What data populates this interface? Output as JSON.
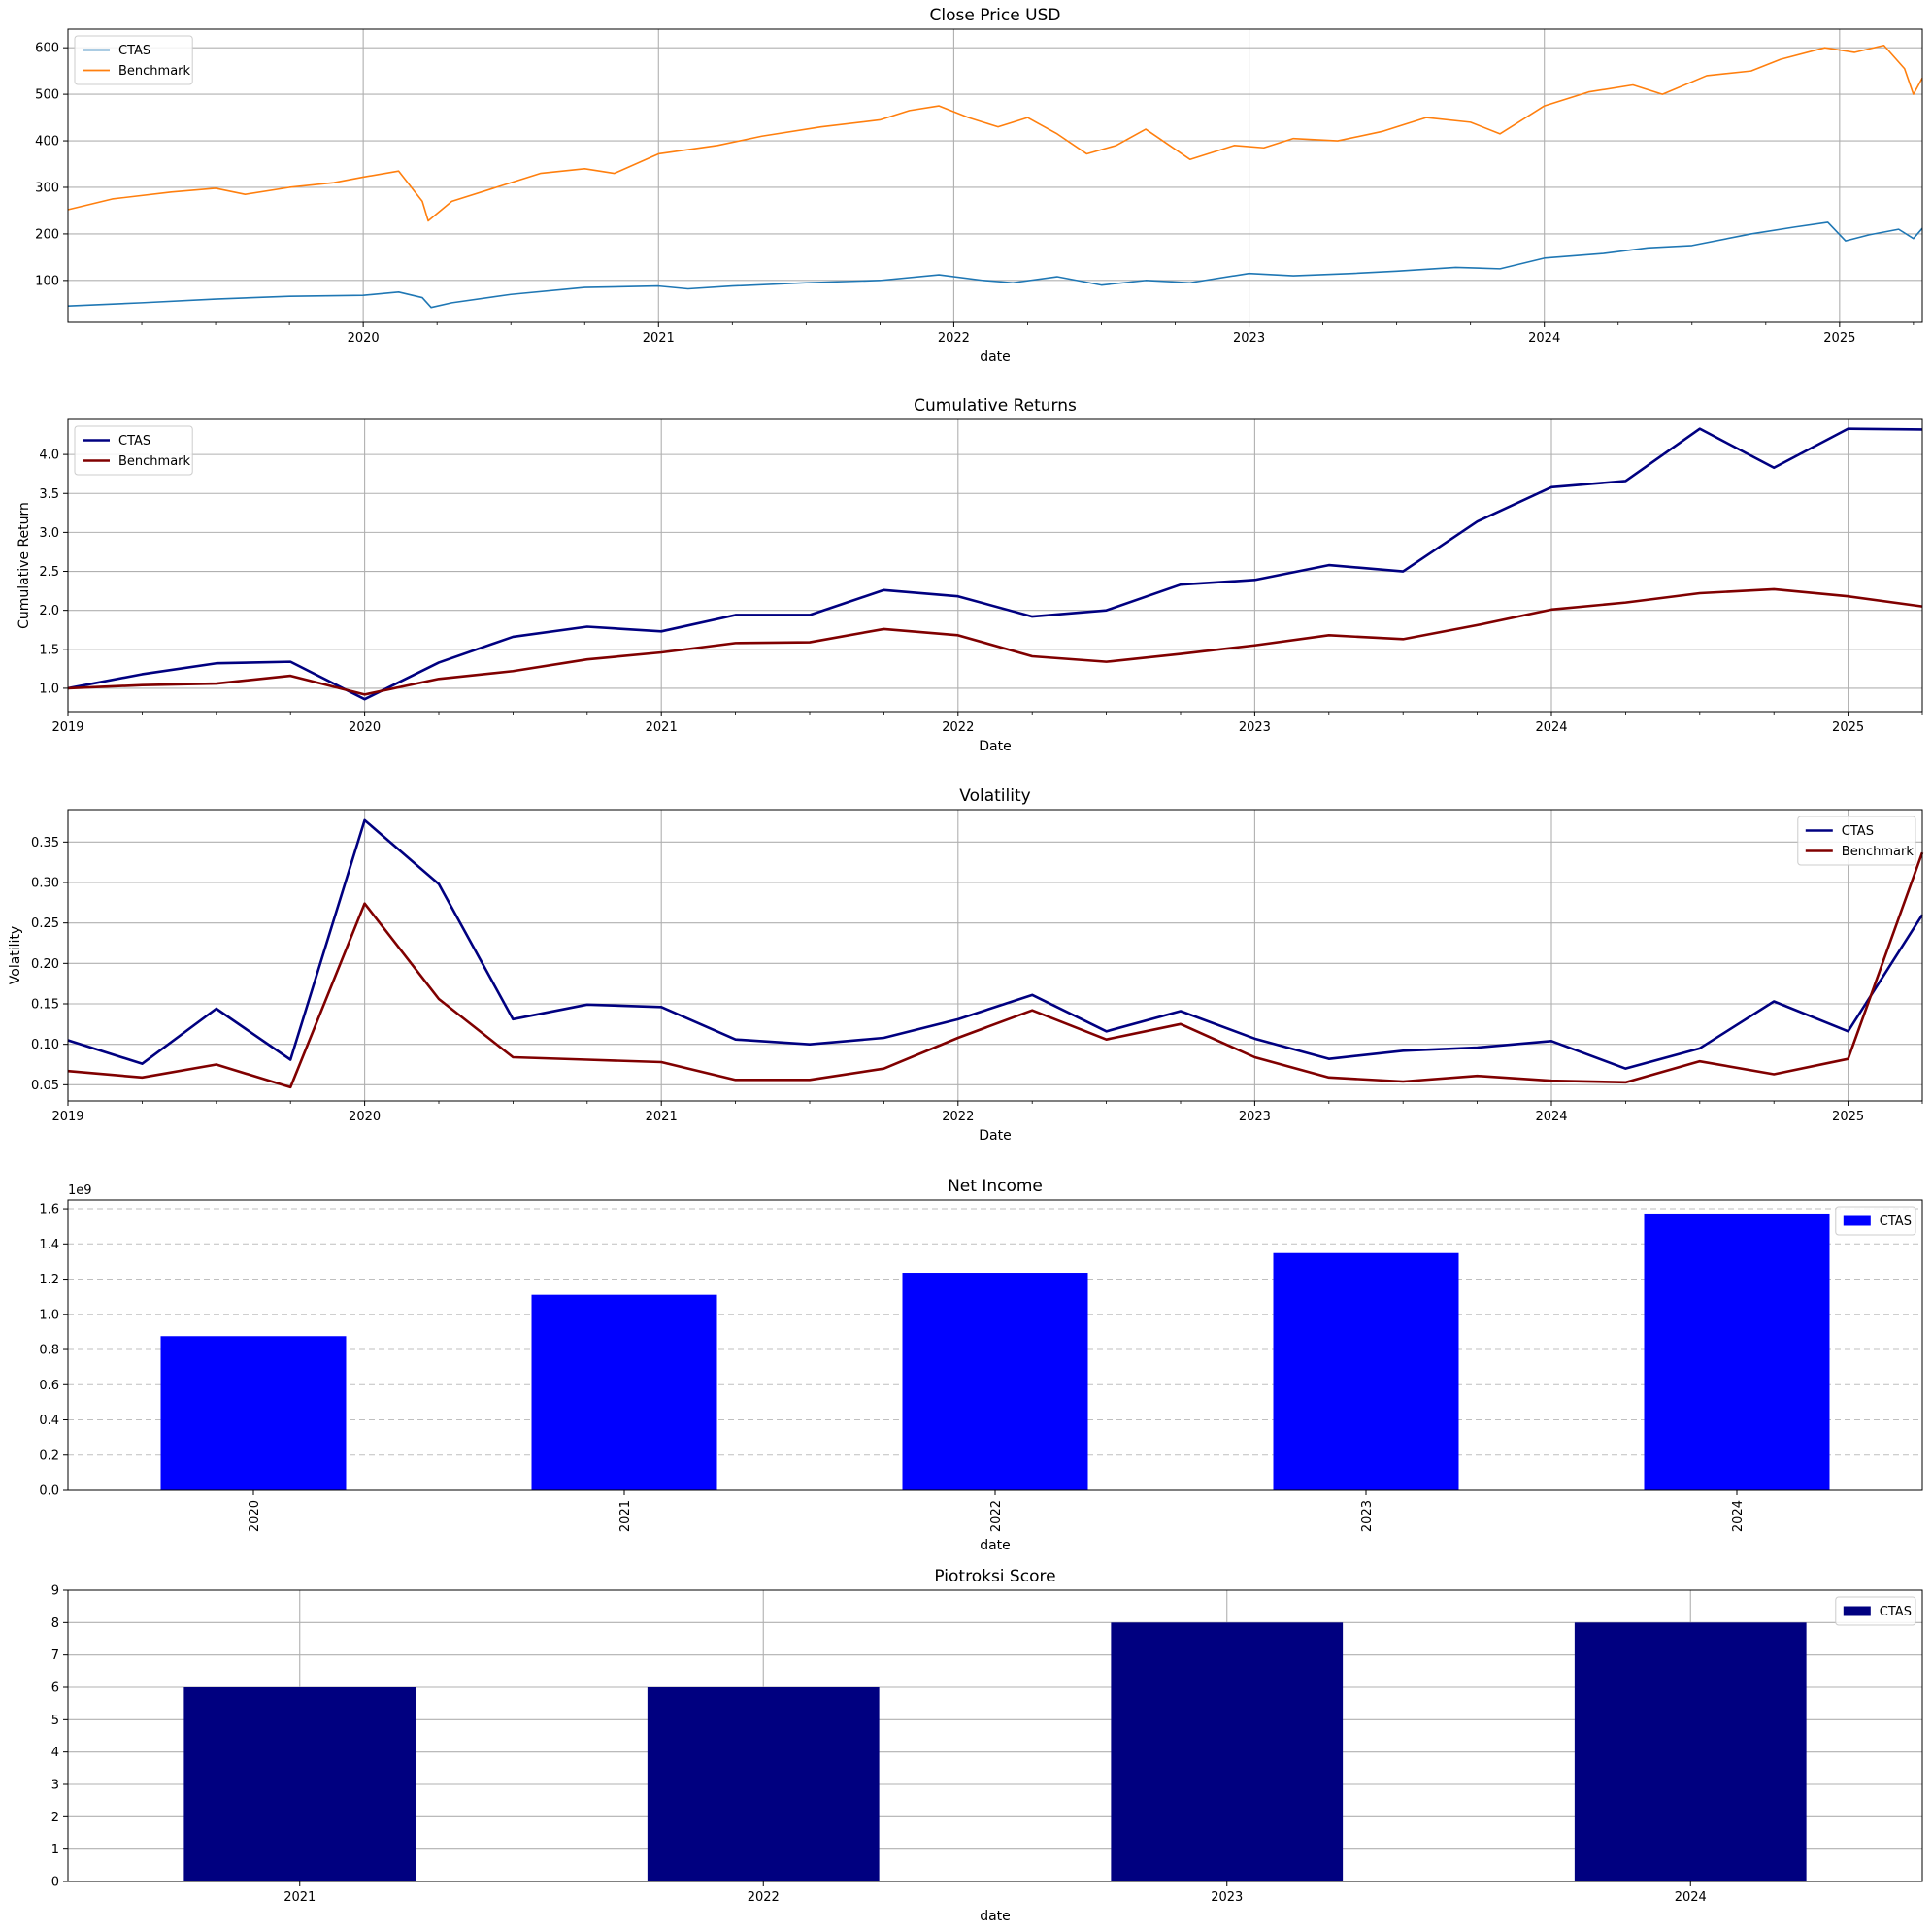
{
  "chart_data": [
    {
      "type": "line",
      "title": "Close Price USD",
      "xlabel": "date",
      "ylabel": "",
      "xlim": [
        2019.0,
        2025.28
      ],
      "ylim": [
        10,
        640
      ],
      "x_ticks": [
        2020,
        2021,
        2022,
        2023,
        2024,
        2025
      ],
      "x_tick_labels": [
        "2020",
        "2021",
        "2022",
        "2023",
        "2024",
        "2025"
      ],
      "y_ticks": [
        100,
        200,
        300,
        400,
        500,
        600
      ],
      "y_tick_labels": [
        "100",
        "200",
        "300",
        "400",
        "500",
        "600"
      ],
      "grid": true,
      "legend": "top-left",
      "series": [
        {
          "name": "CTAS",
          "color": "#1f77b4",
          "points": [
            [
              2019.0,
              45
            ],
            [
              2019.25,
              52
            ],
            [
              2019.5,
              60
            ],
            [
              2019.75,
              66
            ],
            [
              2020.0,
              68
            ],
            [
              2020.12,
              75
            ],
            [
              2020.2,
              63
            ],
            [
              2020.23,
              42
            ],
            [
              2020.3,
              52
            ],
            [
              2020.5,
              70
            ],
            [
              2020.75,
              85
            ],
            [
              2021.0,
              88
            ],
            [
              2021.1,
              82
            ],
            [
              2021.25,
              88
            ],
            [
              2021.5,
              95
            ],
            [
              2021.75,
              100
            ],
            [
              2021.95,
              112
            ],
            [
              2022.1,
              100
            ],
            [
              2022.2,
              95
            ],
            [
              2022.35,
              108
            ],
            [
              2022.5,
              90
            ],
            [
              2022.65,
              100
            ],
            [
              2022.8,
              95
            ],
            [
              2023.0,
              115
            ],
            [
              2023.15,
              110
            ],
            [
              2023.35,
              115
            ],
            [
              2023.5,
              120
            ],
            [
              2023.7,
              128
            ],
            [
              2023.85,
              125
            ],
            [
              2024.0,
              148
            ],
            [
              2024.2,
              158
            ],
            [
              2024.35,
              170
            ],
            [
              2024.5,
              175
            ],
            [
              2024.7,
              200
            ],
            [
              2024.85,
              215
            ],
            [
              2024.96,
              225
            ],
            [
              2025.02,
              185
            ],
            [
              2025.1,
              198
            ],
            [
              2025.2,
              210
            ],
            [
              2025.25,
              190
            ],
            [
              2025.28,
              212
            ]
          ]
        },
        {
          "name": "Benchmark",
          "color": "#ff7f0e",
          "points": [
            [
              2019.0,
              252
            ],
            [
              2019.15,
              275
            ],
            [
              2019.35,
              290
            ],
            [
              2019.5,
              298
            ],
            [
              2019.6,
              285
            ],
            [
              2019.75,
              300
            ],
            [
              2019.9,
              310
            ],
            [
              2020.0,
              322
            ],
            [
              2020.12,
              335
            ],
            [
              2020.2,
              270
            ],
            [
              2020.22,
              228
            ],
            [
              2020.3,
              270
            ],
            [
              2020.45,
              300
            ],
            [
              2020.6,
              330
            ],
            [
              2020.75,
              340
            ],
            [
              2020.85,
              330
            ],
            [
              2021.0,
              372
            ],
            [
              2021.2,
              390
            ],
            [
              2021.35,
              410
            ],
            [
              2021.55,
              430
            ],
            [
              2021.75,
              445
            ],
            [
              2021.85,
              465
            ],
            [
              2021.95,
              475
            ],
            [
              2022.05,
              450
            ],
            [
              2022.15,
              430
            ],
            [
              2022.25,
              450
            ],
            [
              2022.35,
              415
            ],
            [
              2022.45,
              372
            ],
            [
              2022.55,
              390
            ],
            [
              2022.65,
              425
            ],
            [
              2022.8,
              360
            ],
            [
              2022.95,
              390
            ],
            [
              2023.05,
              385
            ],
            [
              2023.15,
              405
            ],
            [
              2023.3,
              400
            ],
            [
              2023.45,
              420
            ],
            [
              2023.6,
              450
            ],
            [
              2023.75,
              440
            ],
            [
              2023.85,
              415
            ],
            [
              2024.0,
              475
            ],
            [
              2024.15,
              505
            ],
            [
              2024.3,
              520
            ],
            [
              2024.4,
              500
            ],
            [
              2024.55,
              540
            ],
            [
              2024.7,
              550
            ],
            [
              2024.8,
              575
            ],
            [
              2024.95,
              600
            ],
            [
              2025.05,
              590
            ],
            [
              2025.15,
              605
            ],
            [
              2025.22,
              555
            ],
            [
              2025.25,
              500
            ],
            [
              2025.28,
              535
            ]
          ]
        }
      ]
    },
    {
      "type": "line",
      "title": "Cumulative Returns",
      "xlabel": "Date",
      "ylabel": "Cumulative Return",
      "xlim": [
        2019.0,
        2025.25
      ],
      "ylim": [
        0.7,
        4.45
      ],
      "x_ticks": [
        2019,
        2020,
        2021,
        2022,
        2023,
        2024,
        2025
      ],
      "x_tick_labels": [
        "2019",
        "2020",
        "2021",
        "2022",
        "2023",
        "2024",
        "2025"
      ],
      "y_ticks": [
        1.0,
        1.5,
        2.0,
        2.5,
        3.0,
        3.5,
        4.0
      ],
      "y_tick_labels": [
        "1.0",
        "1.5",
        "2.0",
        "2.5",
        "3.0",
        "3.5",
        "4.0"
      ],
      "grid": true,
      "legend": "top-left",
      "x": [
        2019.0,
        2019.25,
        2019.5,
        2019.75,
        2020.0,
        2020.25,
        2020.5,
        2020.75,
        2021.0,
        2021.25,
        2021.5,
        2021.75,
        2022.0,
        2022.25,
        2022.5,
        2022.75,
        2023.0,
        2023.25,
        2023.5,
        2023.75,
        2024.0,
        2024.25,
        2024.5,
        2024.75,
        2025.0,
        2025.25
      ],
      "series": [
        {
          "name": "CTAS",
          "color": "#000080",
          "values": [
            1.0,
            1.18,
            1.32,
            1.34,
            0.86,
            1.33,
            1.66,
            1.79,
            1.73,
            1.94,
            1.94,
            2.26,
            2.18,
            1.92,
            2.0,
            2.33,
            2.39,
            2.58,
            2.5,
            3.14,
            3.58,
            3.66,
            4.33,
            3.83,
            4.33,
            4.32
          ]
        },
        {
          "name": "Benchmark",
          "color": "#800000",
          "values": [
            1.0,
            1.04,
            1.06,
            1.16,
            0.92,
            1.12,
            1.22,
            1.37,
            1.46,
            1.58,
            1.59,
            1.76,
            1.68,
            1.41,
            1.34,
            1.44,
            1.55,
            1.68,
            1.63,
            1.81,
            2.01,
            2.1,
            2.22,
            2.27,
            2.18,
            2.05
          ]
        }
      ]
    },
    {
      "type": "line",
      "title": "Volatility",
      "xlabel": "Date",
      "ylabel": "Volatility",
      "xlim": [
        2019.0,
        2025.25
      ],
      "ylim": [
        0.03,
        0.39
      ],
      "x_ticks": [
        2019,
        2020,
        2021,
        2022,
        2023,
        2024,
        2025
      ],
      "x_tick_labels": [
        "2019",
        "2020",
        "2021",
        "2022",
        "2023",
        "2024",
        "2025"
      ],
      "y_ticks": [
        0.05,
        0.1,
        0.15,
        0.2,
        0.25,
        0.3,
        0.35
      ],
      "y_tick_labels": [
        "0.05",
        "0.10",
        "0.15",
        "0.20",
        "0.25",
        "0.30",
        "0.35"
      ],
      "grid": true,
      "legend": "top-right",
      "x": [
        2019.0,
        2019.25,
        2019.5,
        2019.75,
        2020.0,
        2020.25,
        2020.5,
        2020.75,
        2021.0,
        2021.25,
        2021.5,
        2021.75,
        2022.0,
        2022.25,
        2022.5,
        2022.75,
        2023.0,
        2023.25,
        2023.5,
        2023.75,
        2024.0,
        2024.25,
        2024.5,
        2024.75,
        2025.0,
        2025.25
      ],
      "series": [
        {
          "name": "CTAS",
          "color": "#000080",
          "values": [
            0.105,
            0.076,
            0.144,
            0.081,
            0.377,
            0.298,
            0.131,
            0.149,
            0.146,
            0.106,
            0.1,
            0.108,
            0.131,
            0.161,
            0.116,
            0.141,
            0.107,
            0.082,
            0.092,
            0.096,
            0.104,
            0.07,
            0.095,
            0.153,
            0.116,
            0.26
          ]
        },
        {
          "name": "Benchmark",
          "color": "#800000",
          "values": [
            0.067,
            0.059,
            0.075,
            0.047,
            0.274,
            0.156,
            0.084,
            0.081,
            0.078,
            0.056,
            0.056,
            0.07,
            0.108,
            0.142,
            0.106,
            0.125,
            0.084,
            0.059,
            0.054,
            0.061,
            0.055,
            0.053,
            0.079,
            0.063,
            0.082,
            0.337
          ]
        }
      ]
    },
    {
      "type": "bar",
      "title": "Net Income",
      "xlabel": "date",
      "ylabel": "",
      "y_offset_label": "1e9",
      "ylim": [
        0,
        1.65
      ],
      "y_ticks": [
        0.0,
        0.2,
        0.4,
        0.6,
        0.8,
        1.0,
        1.2,
        1.4,
        1.6
      ],
      "y_tick_labels": [
        "0.0",
        "0.2",
        "0.4",
        "0.6",
        "0.8",
        "1.0",
        "1.2",
        "1.4",
        "1.6"
      ],
      "grid": "y-dashed",
      "legend": "top-right",
      "categories": [
        "2020",
        "2021",
        "2022",
        "2023",
        "2024"
      ],
      "series": [
        {
          "name": "CTAS",
          "color": "#0000ff",
          "values": [
            0.876,
            1.111,
            1.236,
            1.348,
            1.573
          ]
        }
      ]
    },
    {
      "type": "bar",
      "title": "Piotroksi Score",
      "xlabel": "date",
      "ylabel": "",
      "ylim": [
        0,
        9
      ],
      "y_ticks": [
        0,
        1,
        2,
        3,
        4,
        5,
        6,
        7,
        8,
        9
      ],
      "y_tick_labels": [
        "0",
        "1",
        "2",
        "3",
        "4",
        "5",
        "6",
        "7",
        "8",
        "9"
      ],
      "grid": true,
      "legend": "top-right",
      "categories": [
        "2021",
        "2022",
        "2023",
        "2024"
      ],
      "series": [
        {
          "name": "CTAS",
          "color": "#000080",
          "values": [
            6,
            6,
            8,
            8
          ]
        }
      ]
    }
  ]
}
